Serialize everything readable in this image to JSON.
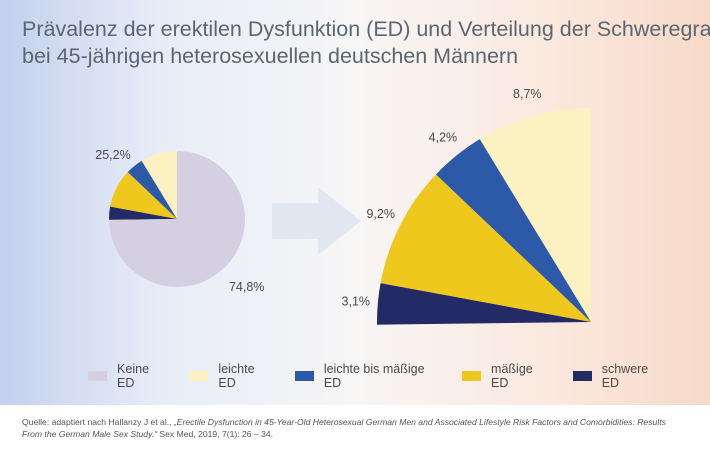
{
  "header": {
    "title_line1": "Prävalenz der erektilen Dysfunktion (ED) und Verteilung der Schweregrade",
    "title_line2": "bei 45-jährigen heterosexuellen deutschen Männern"
  },
  "colors": {
    "keine_ed": "#d5cfe2",
    "leichte_ed": "#fbf1c1",
    "leichte_bis_maessige_ed": "#2c5aa9",
    "maessige_ed": "#eec81d",
    "schwere_ed": "#232a66",
    "arrow": "#e3e7f2"
  },
  "chart_data": [
    {
      "type": "pie",
      "categories": [
        "Keine ED",
        "leichte ED",
        "leichte bis mäßige ED",
        "mäßige ED",
        "schwere ED"
      ],
      "values": [
        74.8,
        8.7,
        4.2,
        9.2,
        3.1
      ],
      "data_labels": [
        "74,8%",
        "",
        "",
        "",
        ""
      ],
      "group_label": "25,2%"
    },
    {
      "type": "pie",
      "subtype": "exploded-sector",
      "categories": [
        "leichte ED",
        "leichte bis mäßige ED",
        "mäßige ED",
        "schwere ED"
      ],
      "values": [
        8.7,
        4.2,
        9.2,
        3.1
      ],
      "data_labels": [
        "8,7%",
        "4,2%",
        "9,2%",
        "3,1%"
      ]
    }
  ],
  "legend": {
    "items": [
      {
        "label": "Keine ED",
        "color": "#d5cfe2"
      },
      {
        "label": "leichte ED",
        "color": "#fbf1c1"
      },
      {
        "label": "leichte bis mäßige ED",
        "color": "#2c5aa9"
      },
      {
        "label": "mäßige ED",
        "color": "#eec81d"
      },
      {
        "label": "schwere ED",
        "color": "#232a66"
      }
    ]
  },
  "source": {
    "prefix": "Quelle: adaptiert nach Hallanzy J et al., ",
    "title": "„Erectile Dysfunction in 45-Year-Old Heterosexual German Men and Associated Lifestyle Risk Factors and Comorbidities: Results From the German Male Sex Study.“",
    "suffix": " Sex Med, 2019, 7(1): 26 – 34."
  }
}
